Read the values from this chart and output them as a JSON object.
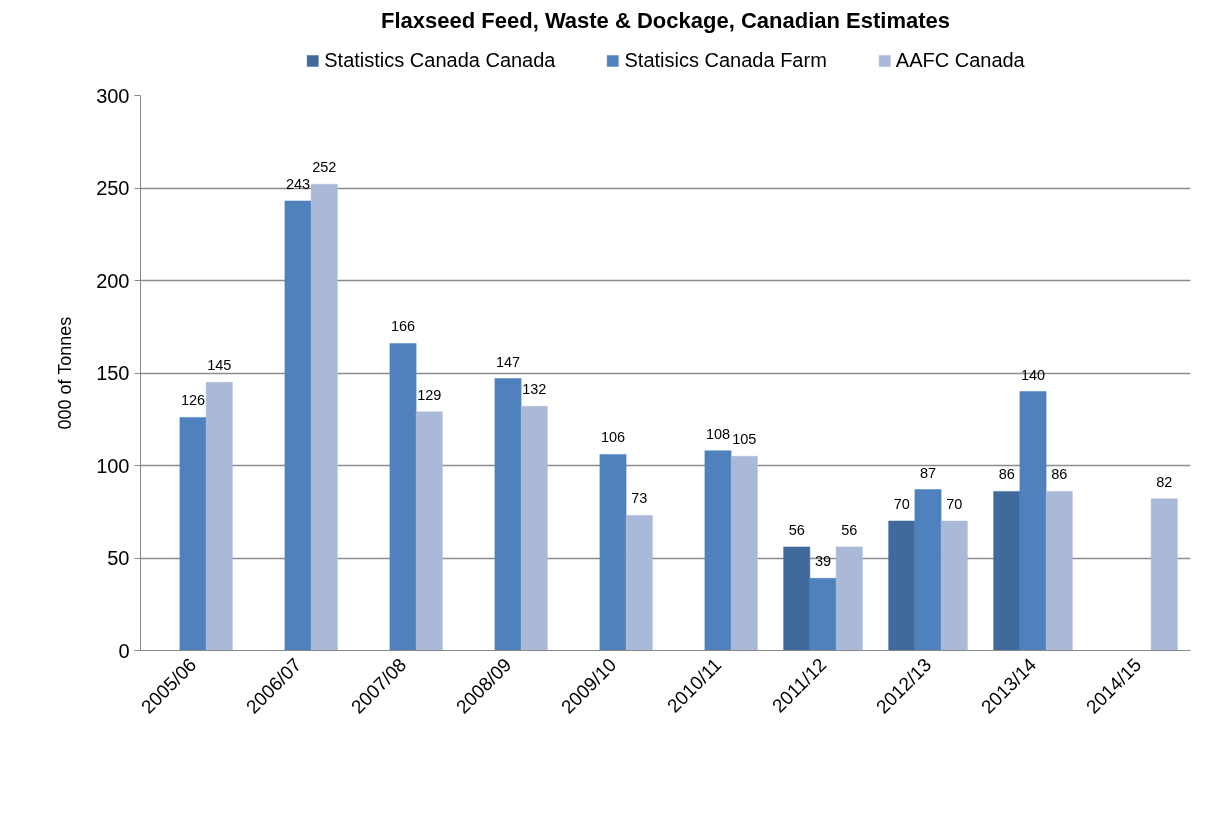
{
  "chart_data": {
    "type": "bar",
    "title": "Flaxseed Feed, Waste & Dockage, Canadian Estimates",
    "ylabel": "000 of Tonnes",
    "categories": [
      "2005/06",
      "2006/07",
      "2007/08",
      "2008/09",
      "2009/10",
      "2010/11",
      "2011/12",
      "2012/13",
      "2013/14",
      "2014/15"
    ],
    "series": [
      {
        "name": "Statistics Canada Canada",
        "color": "#416a9c",
        "values": [
          null,
          null,
          null,
          null,
          null,
          null,
          56,
          70,
          86,
          null
        ]
      },
      {
        "name": "Statisics Canada Farm",
        "color": "#4f81bd",
        "values": [
          126,
          243,
          166,
          147,
          106,
          108,
          39,
          87,
          140,
          null
        ]
      },
      {
        "name": "AAFC Canada",
        "color": "#aab9d7",
        "values": [
          145,
          252,
          129,
          132,
          73,
          105,
          56,
          70,
          86,
          82
        ]
      }
    ],
    "ylim": [
      0,
      300
    ],
    "yticks": [
      0,
      50,
      100,
      150,
      200,
      250,
      300
    ],
    "grid": "y",
    "legend": "top",
    "data_labels": true
  }
}
